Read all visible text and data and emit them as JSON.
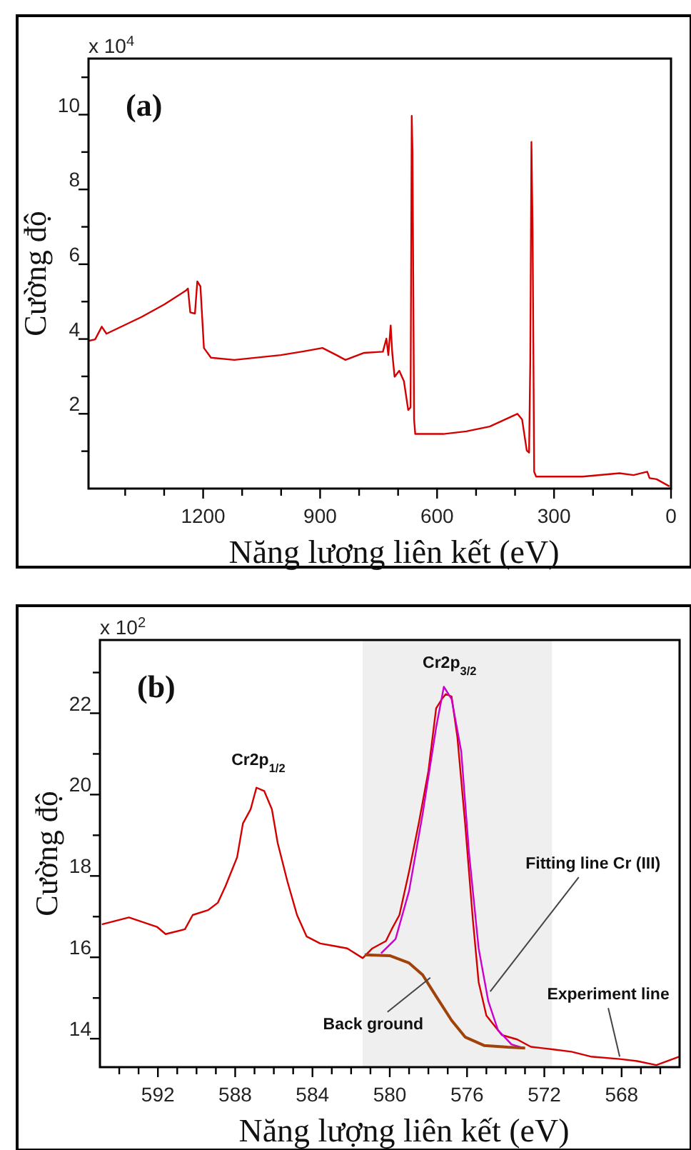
{
  "chart_data": [
    {
      "type": "line",
      "ylabel": "Cường độ",
      "xlabel": "Năng lượng liên kết (eV)",
      "xlim": [
        1494,
        0
      ],
      "ylim": [
        0,
        11.5
      ],
      "xticks": [
        {
          "value": 1400,
          "label": null
        },
        {
          "value": 1300,
          "label": null
        },
        1200,
        {
          "value": 1100,
          "label": null
        },
        {
          "value": 1000,
          "label": null
        },
        900,
        {
          "value": 800,
          "label": null
        },
        {
          "value": 700,
          "label": null
        },
        600,
        {
          "value": 500,
          "label": null
        },
        {
          "value": 400,
          "label": null
        },
        300,
        {
          "value": 200,
          "label": null
        },
        {
          "value": 100,
          "label": null
        },
        0
      ],
      "yticks": [
        {
          "value": 1,
          "label": null
        },
        2,
        {
          "value": 3,
          "label": null
        },
        4,
        {
          "value": 5,
          "label": null
        },
        6,
        {
          "value": 7,
          "label": null
        },
        8,
        {
          "value": 9,
          "label": null
        },
        10,
        {
          "value": 11,
          "label": null
        }
      ],
      "annotations": [
        "x 10$^{4}$",
        "(a)"
      ],
      "series": [
        {
          "color": "#d40000",
          "x": [
            1494,
            1477,
            1460,
            1448,
            1358,
            1299,
            1245,
            1239,
            1233,
            1221,
            1215,
            1207,
            1198,
            1180,
            1120,
            1001,
            942,
            894,
            858,
            835,
            787,
            739,
            730,
            725,
            719,
            715,
            709,
            697,
            685,
            674,
            668,
            665,
            663,
            659,
            656,
            584,
            525,
            465,
            394,
            382,
            370,
            364,
            361,
            358,
            355,
            351,
            346,
            227,
            132,
            96,
            61,
            55,
            37,
            4
          ],
          "values": [
            3.95,
            3.99,
            4.33,
            4.14,
            4.59,
            4.93,
            5.29,
            5.35,
            4.71,
            4.68,
            5.54,
            5.41,
            3.76,
            3.5,
            3.44,
            3.57,
            3.67,
            3.76,
            3.57,
            3.44,
            3.63,
            3.66,
            4.01,
            3.57,
            4.36,
            3.63,
            2.99,
            3.15,
            2.87,
            2.1,
            2.17,
            9.97,
            8.98,
            1.85,
            1.46,
            1.46,
            1.53,
            1.66,
            2.0,
            1.85,
            1.02,
            0.96,
            3.38,
            9.27,
            6.94,
            0.45,
            0.32,
            0.32,
            0.41,
            0.36,
            0.45,
            0.28,
            0.25,
            0.06
          ]
        }
      ]
    },
    {
      "type": "line",
      "ylabel": "Cường độ",
      "xlabel": "Năng lượng liên kết (eV)",
      "xlim": [
        595,
        565
      ],
      "ylim": [
        13.3,
        23.8
      ],
      "xticks": [
        {
          "value": 594,
          "label": null
        },
        {
          "value": 593,
          "label": null
        },
        592,
        {
          "value": 591,
          "label": null
        },
        {
          "value": 590,
          "label": null
        },
        {
          "value": 589,
          "label": null
        },
        588,
        {
          "value": 587,
          "label": null
        },
        {
          "value": 586,
          "label": null
        },
        {
          "value": 585,
          "label": null
        },
        584,
        {
          "value": 583,
          "label": null
        },
        {
          "value": 582,
          "label": null
        },
        {
          "value": 581,
          "label": null
        },
        580,
        {
          "value": 579,
          "label": null
        },
        {
          "value": 578,
          "label": null
        },
        {
          "value": 577,
          "label": null
        },
        576,
        {
          "value": 575,
          "label": null
        },
        {
          "value": 574,
          "label": null
        },
        {
          "value": 573,
          "label": null
        },
        572,
        {
          "value": 571,
          "label": null
        },
        {
          "value": 570,
          "label": null
        },
        {
          "value": 569,
          "label": null
        },
        568,
        {
          "value": 567,
          "label": null
        },
        {
          "value": 566,
          "label": null
        }
      ],
      "yticks": [
        14,
        {
          "value": 15,
          "label": null
        },
        16,
        {
          "value": 17,
          "label": null
        },
        18,
        {
          "value": 19,
          "label": null
        },
        20,
        {
          "value": 21,
          "label": null
        },
        22,
        {
          "value": 23,
          "label": null
        }
      ],
      "bands": [
        {
          "axis": "x",
          "from": 581.4,
          "to": 571.6,
          "color": "#efefef"
        }
      ],
      "annotations": [
        "x 10$^{2}$",
        "(b)",
        {
          "text": "Cr2p$_{1/2}$",
          "x": 586.8,
          "y": 20.3
        },
        {
          "text": "Cr2p$_{3/2}$",
          "x": 577.2,
          "y": 22.7
        },
        {
          "text": "Fitting line Cr (III)",
          "x": 574.8,
          "y": 15.16
        },
        {
          "text": "Experiment line",
          "x": 568.1,
          "y": 13.56
        },
        {
          "text": "Back ground",
          "x": 577.9,
          "y": 15.5
        }
      ],
      "series": [
        {
          "color": "#d40000",
          "x": [
            594.9,
            593.5,
            592.05,
            591.6,
            590.6,
            590.2,
            589.4,
            588.9,
            588.5,
            587.9,
            587.6,
            587.2,
            586.9,
            586.5,
            586.1,
            585.8,
            585.3,
            584.8,
            584.3,
            583.6,
            582.9,
            582.2,
            581.4,
            580.9,
            580.2,
            579.9,
            579.5,
            579.0,
            578.5,
            578.0,
            577.6,
            577.3,
            577.1,
            576.8,
            576.5,
            576.1,
            575.7,
            575.4,
            575.0,
            574.7,
            574.2,
            573.4,
            572.7,
            571.6,
            570.6,
            569.6,
            568.1,
            567.2,
            566.2,
            565
          ],
          "values": [
            16.81,
            16.98,
            16.75,
            16.57,
            16.69,
            17.04,
            17.16,
            17.34,
            17.75,
            18.46,
            19.29,
            19.64,
            20.17,
            20.09,
            19.64,
            18.81,
            17.87,
            17.04,
            16.51,
            16.34,
            16.28,
            16.22,
            15.98,
            16.22,
            16.4,
            16.69,
            17.04,
            18.11,
            19.29,
            20.58,
            22.12,
            22.35,
            22.47,
            22.41,
            21.41,
            19.29,
            16.93,
            15.39,
            14.57,
            14.39,
            14.09,
            13.98,
            13.8,
            13.74,
            13.68,
            13.56,
            13.5,
            13.45,
            13.35,
            13.56
          ]
        },
        {
          "color": "#cc00cc",
          "x": [
            580.45,
            579.7,
            579.0,
            578.3,
            577.6,
            577.2,
            576.8,
            576.3,
            575.9,
            575.4,
            574.9,
            574.4,
            573.7,
            573.0
          ],
          "values": [
            16.1,
            16.45,
            17.63,
            19.52,
            21.65,
            22.65,
            22.35,
            21.06,
            18.58,
            16.22,
            14.92,
            14.21,
            13.86,
            13.76
          ]
        },
        {
          "color": "#a0420a",
          "x": [
            581.3,
            580.0,
            579.0,
            578.3,
            577.6,
            576.8,
            576.1,
            575.1,
            573.9,
            573.0
          ],
          "values": [
            16.06,
            16.04,
            15.86,
            15.57,
            15.04,
            14.45,
            14.04,
            13.83,
            13.79,
            13.77
          ]
        }
      ]
    }
  ]
}
